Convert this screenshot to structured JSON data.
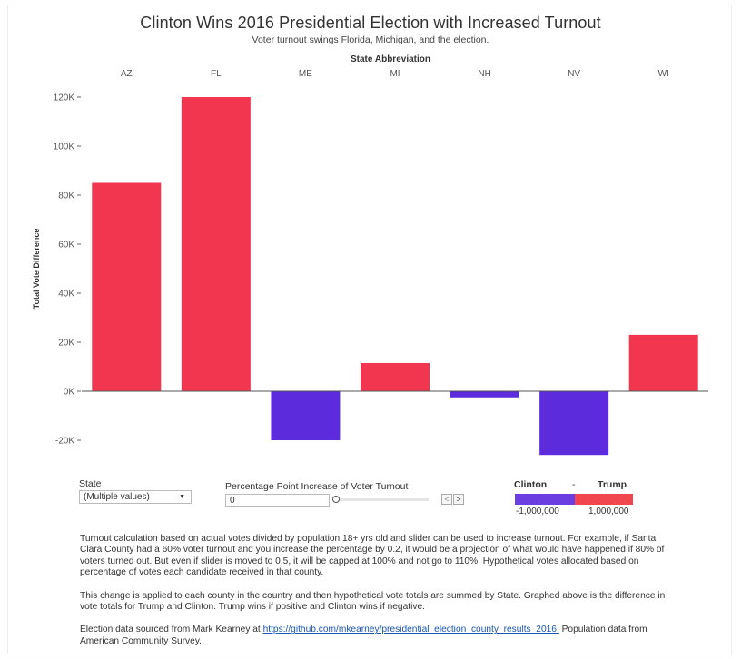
{
  "header": {
    "title": "Clinton Wins 2016 Presidential Election with Increased Turnout",
    "subtitle": "Voter turnout swings Florida, Michigan, and the election."
  },
  "chart_data": {
    "type": "bar",
    "xlabel": "State Abbreviation",
    "ylabel": "Total Vote Difference",
    "categories": [
      "AZ",
      "FL",
      "ME",
      "MI",
      "NH",
      "NV",
      "WI"
    ],
    "values": [
      85000,
      120000,
      -20000,
      11500,
      -2500,
      -26000,
      23000
    ],
    "ylim": [
      -28000,
      128000
    ],
    "yticks": [
      120000,
      100000,
      80000,
      60000,
      40000,
      20000,
      0,
      -20000
    ],
    "ytick_labels": [
      "120K",
      "100K",
      "80K",
      "60K",
      "40K",
      "20K",
      "0K",
      "-20K"
    ],
    "x_axis_position": "top",
    "grid": false,
    "colors": {
      "positive": "#f2364f",
      "negative": "#5c2cdc"
    }
  },
  "controls": {
    "state": {
      "label": "State",
      "value": "(Multiple values)"
    },
    "turnout": {
      "label": "Percentage Point Increase of Voter Turnout",
      "value": "0",
      "level": 0
    },
    "prev_symbol": "<",
    "next_symbol": ">"
  },
  "legend": {
    "left_label": "Clinton",
    "separator": "-",
    "right_label": "Trump",
    "min_label": "-1,000,000",
    "max_label": "1,000,000",
    "colors": {
      "clinton": "#6a3ee0",
      "trump": "#f2464f"
    }
  },
  "notes": {
    "p1": "Turnout calculation based on actual votes divided by population 18+ yrs old and slider can be used to increase turnout. For example, if Santa Clara County had a 60% voter turnout and you increase the percentage by 0.2, it would be a projection of what would have happened if 80% of voters turned out. But even if slider is moved to 0.5, it will be capped at 100% and not go to 110%. Hypothetical votes allocated based on percentage of votes each candidate received in that county.",
    "p2": "This change is applied to each county in the country and then hypothetical vote totals are summed by State. Graphed above is the difference in vote totals for Trump and Clinton. Trump wins if positive and Clinton wins if negative.",
    "p3_prefix": "Election data sourced from Mark Kearney at ",
    "p3_link": "https://github.com/mkearney/presidential_election_county_results_2016.",
    "p3_suffix": " Population data from American Community Survey."
  }
}
